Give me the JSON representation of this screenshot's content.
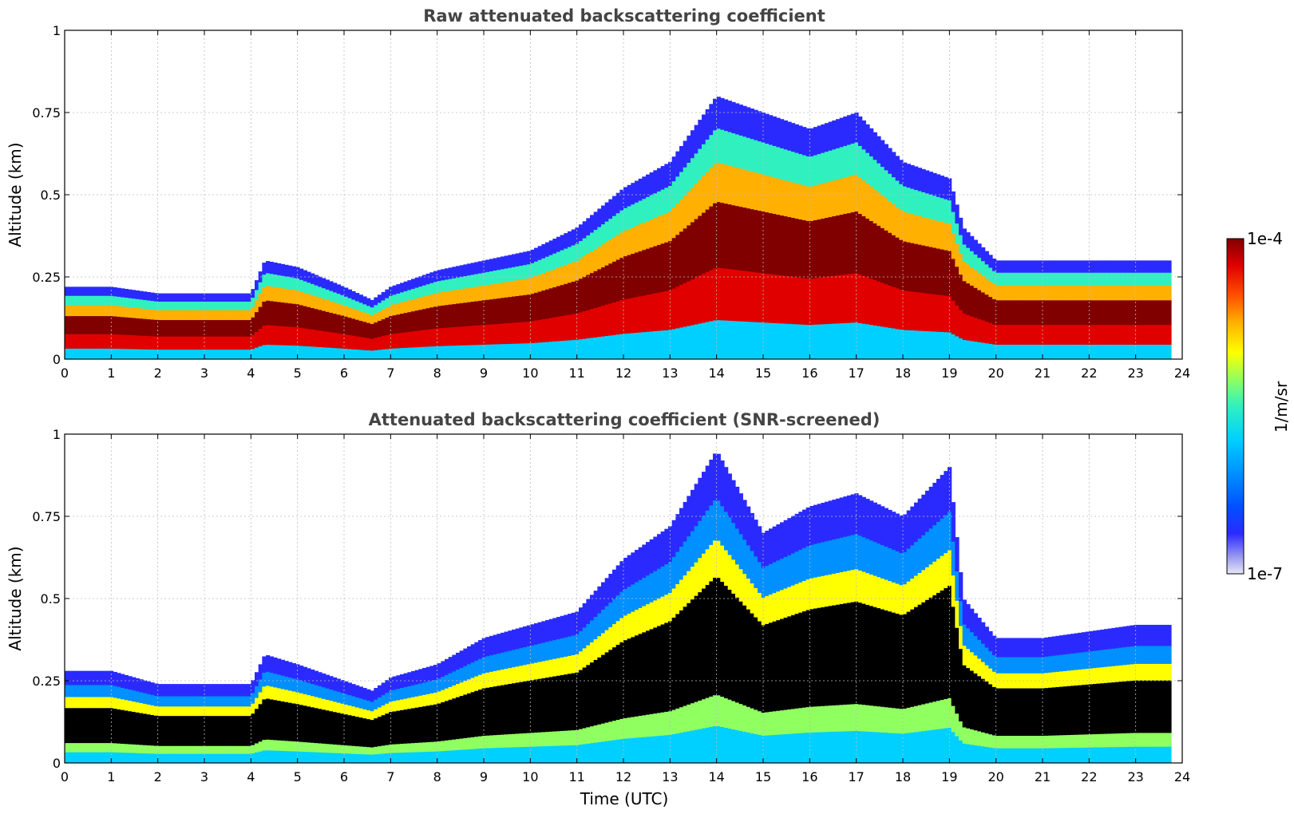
{
  "chart_data": [
    {
      "type": "heatmap",
      "title": "Raw attenuated backscattering coefficient",
      "xlabel": "",
      "ylabel": "Altitude (km)",
      "xlim": [
        0,
        24
      ],
      "ylim": [
        0,
        1
      ],
      "xticks": [
        0,
        1,
        2,
        3,
        4,
        5,
        6,
        7,
        8,
        9,
        10,
        11,
        12,
        13,
        14,
        15,
        16,
        17,
        18,
        19,
        20,
        21,
        22,
        23,
        24
      ],
      "yticks": [
        0,
        0.25,
        0.5,
        0.75,
        1
      ],
      "ytick_labels": [
        "0",
        "0.25",
        "0.5",
        "0.75",
        "1"
      ],
      "grid": true,
      "cloud_layer_top_km": [
        {
          "t": 0,
          "z": 0.22
        },
        {
          "t": 1,
          "z": 0.22
        },
        {
          "t": 2,
          "z": 0.2
        },
        {
          "t": 3,
          "z": 0.2
        },
        {
          "t": 4,
          "z": 0.2
        },
        {
          "t": 4.3,
          "z": 0.3
        },
        {
          "t": 5,
          "z": 0.28
        },
        {
          "t": 6,
          "z": 0.22
        },
        {
          "t": 6.6,
          "z": 0.18
        },
        {
          "t": 7,
          "z": 0.22
        },
        {
          "t": 8,
          "z": 0.27
        },
        {
          "t": 9,
          "z": 0.3
        },
        {
          "t": 10,
          "z": 0.33
        },
        {
          "t": 11,
          "z": 0.4
        },
        {
          "t": 12,
          "z": 0.52
        },
        {
          "t": 13,
          "z": 0.6
        },
        {
          "t": 14,
          "z": 0.8
        },
        {
          "t": 15,
          "z": 0.75
        },
        {
          "t": 16,
          "z": 0.7
        },
        {
          "t": 17,
          "z": 0.75
        },
        {
          "t": 18,
          "z": 0.6
        },
        {
          "t": 19,
          "z": 0.55
        },
        {
          "t": 19.3,
          "z": 0.4
        },
        {
          "t": 20,
          "z": 0.3
        },
        {
          "t": 21,
          "z": 0.3
        },
        {
          "t": 22,
          "z": 0.3
        },
        {
          "t": 23,
          "z": 0.3
        },
        {
          "t": 23.75,
          "z": 0.3
        }
      ]
    },
    {
      "type": "heatmap",
      "title": "Attenuated backscattering coefficient (SNR-screened)",
      "xlabel": "Time (UTC)",
      "ylabel": "Altitude (km)",
      "xlim": [
        0,
        24
      ],
      "ylim": [
        0,
        1
      ],
      "xticks": [
        0,
        1,
        2,
        3,
        4,
        5,
        6,
        7,
        8,
        9,
        10,
        11,
        12,
        13,
        14,
        15,
        16,
        17,
        18,
        19,
        20,
        21,
        22,
        23,
        24
      ],
      "yticks": [
        0,
        0.25,
        0.5,
        0.75,
        1
      ],
      "ytick_labels": [
        "0",
        "0.25",
        "0.5",
        "0.75",
        "1"
      ],
      "grid": true,
      "cloud_layer_top_km": [
        {
          "t": 0,
          "z": 0.28
        },
        {
          "t": 1,
          "z": 0.28
        },
        {
          "t": 2,
          "z": 0.24
        },
        {
          "t": 3,
          "z": 0.24
        },
        {
          "t": 4,
          "z": 0.24
        },
        {
          "t": 4.3,
          "z": 0.33
        },
        {
          "t": 5,
          "z": 0.3
        },
        {
          "t": 6,
          "z": 0.25
        },
        {
          "t": 6.6,
          "z": 0.22
        },
        {
          "t": 7,
          "z": 0.26
        },
        {
          "t": 8,
          "z": 0.3
        },
        {
          "t": 9,
          "z": 0.38
        },
        {
          "t": 10,
          "z": 0.42
        },
        {
          "t": 11,
          "z": 0.46
        },
        {
          "t": 12,
          "z": 0.62
        },
        {
          "t": 13,
          "z": 0.72
        },
        {
          "t": 14,
          "z": 0.95
        },
        {
          "t": 15,
          "z": 0.7
        },
        {
          "t": 16,
          "z": 0.78
        },
        {
          "t": 17,
          "z": 0.82
        },
        {
          "t": 18,
          "z": 0.75
        },
        {
          "t": 19,
          "z": 0.9
        },
        {
          "t": 19.3,
          "z": 0.5
        },
        {
          "t": 20,
          "z": 0.38
        },
        {
          "t": 21,
          "z": 0.38
        },
        {
          "t": 22,
          "z": 0.4
        },
        {
          "t": 23,
          "z": 0.42
        },
        {
          "t": 23.75,
          "z": 0.42
        }
      ]
    }
  ],
  "colorbar": {
    "label": "1/m/sr",
    "max_label": "1e-4",
    "min_label": "1e-7",
    "colors": [
      "#e8e8f8",
      "#9a9af0",
      "#2a2aff",
      "#0050ff",
      "#0090ff",
      "#00d0ff",
      "#30f0c0",
      "#90ff60",
      "#ffff00",
      "#ffb000",
      "#ff5000",
      "#e00000",
      "#800000"
    ]
  }
}
